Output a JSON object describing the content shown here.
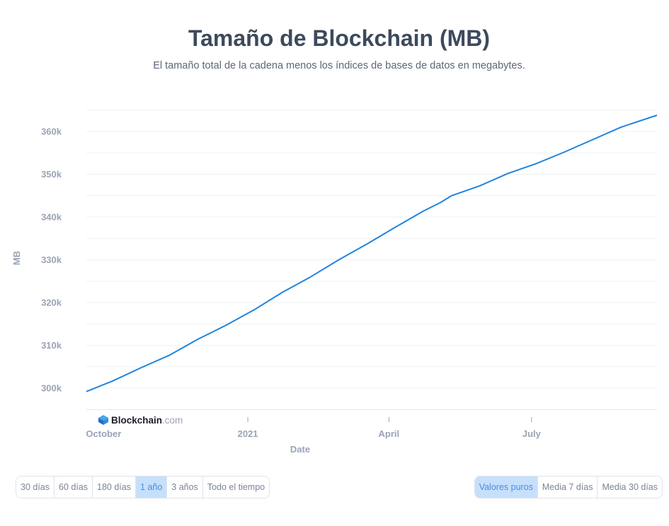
{
  "title": "Tamaño de Blockchain (MB)",
  "subtitle": "El tamaño total de la cadena menos los índices de bases de datos en megabytes.",
  "logo": {
    "brand": "Blockchain",
    "suffix": ".com",
    "icon": "blockchain-cube-icon"
  },
  "colors": {
    "line": "#1f84e0",
    "axis_text": "#9aa3b5",
    "grid": "#eef0f3",
    "active_bg": "#c6e0fb",
    "active_text": "#4a8be0"
  },
  "time_range_buttons": [
    {
      "label": "30 días",
      "active": false
    },
    {
      "label": "60 días",
      "active": false
    },
    {
      "label": "180 días",
      "active": false
    },
    {
      "label": "1 año",
      "active": true
    },
    {
      "label": "3 años",
      "active": false
    },
    {
      "label": "Todo el tiempo",
      "active": false
    }
  ],
  "smoothing_buttons": [
    {
      "label": "Valores puros",
      "active": true
    },
    {
      "label": "Media 7 días",
      "active": false
    },
    {
      "label": "Media 30 días",
      "active": false
    }
  ],
  "chart_data": {
    "type": "line",
    "xlabel": "Date",
    "ylabel": "MB",
    "x_ticks": [
      {
        "date": "2020-10-01",
        "label": "October"
      },
      {
        "date": "2021-01-01",
        "label": "2021"
      },
      {
        "date": "2021-04-01",
        "label": "April"
      },
      {
        "date": "2021-07-01",
        "label": "July"
      }
    ],
    "y_ticks": [
      300000,
      310000,
      320000,
      330000,
      340000,
      350000,
      360000
    ],
    "y_tick_labels": [
      "300k",
      "310k",
      "320k",
      "330k",
      "340k",
      "350k",
      "360k"
    ],
    "x_range": [
      "2020-09-20",
      "2021-09-19"
    ],
    "ylim": [
      295000,
      365000
    ],
    "grid": true,
    "series": [
      {
        "color": "#1f84e0",
        "points": [
          [
            "2020-09-20",
            299200
          ],
          [
            "2020-10-07",
            301700
          ],
          [
            "2020-10-25",
            304800
          ],
          [
            "2020-11-12",
            307700
          ],
          [
            "2020-11-30",
            311400
          ],
          [
            "2020-12-18",
            314700
          ],
          [
            "2021-01-05",
            318300
          ],
          [
            "2021-01-23",
            322400
          ],
          [
            "2021-02-10",
            326000
          ],
          [
            "2021-02-28",
            330000
          ],
          [
            "2021-03-18",
            333700
          ],
          [
            "2021-04-05",
            337600
          ],
          [
            "2021-04-23",
            341400
          ],
          [
            "2021-05-04",
            343400
          ],
          [
            "2021-05-11",
            345000
          ],
          [
            "2021-05-29",
            347300
          ],
          [
            "2021-06-16",
            350200
          ],
          [
            "2021-07-04",
            352500
          ],
          [
            "2021-07-22",
            355200
          ],
          [
            "2021-08-09",
            358100
          ],
          [
            "2021-08-27",
            361000
          ],
          [
            "2021-09-19",
            363800
          ]
        ]
      }
    ]
  }
}
